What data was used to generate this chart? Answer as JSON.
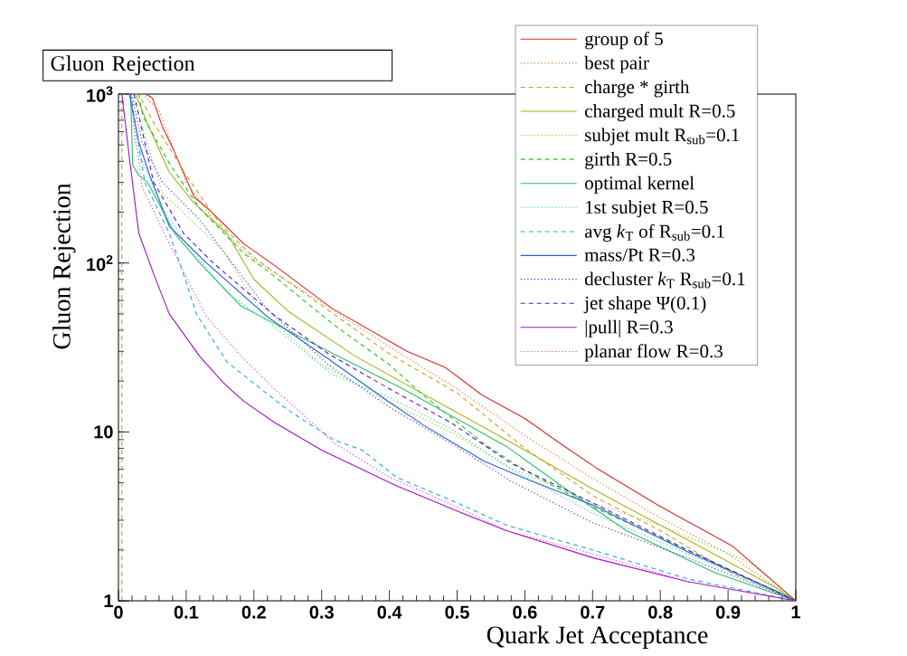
{
  "chart_data": {
    "type": "line",
    "title": "Gluon Rejection",
    "xlabel": "Quark Jet Acceptance",
    "ylabel": "Gluon Rejection",
    "xlim": [
      0,
      1
    ],
    "ylim": [
      1,
      1000
    ],
    "log": true,
    "legend": "top right",
    "marker": "none",
    "xticks": [
      0,
      0.1,
      0.2,
      0.3,
      0.4,
      0.5,
      0.6,
      0.7,
      0.8,
      0.9,
      1
    ],
    "yticks": [
      1,
      10,
      {
        "value": 100,
        "label": "10$^{2}$"
      },
      {
        "value": 1000,
        "label": "10$^{3}$"
      }
    ],
    "series": [
      {
        "name": "group of 5",
        "color": "#d42a2a",
        "line_style": "solid",
        "x": [
          0.04,
          0.05,
          0.065,
          0.08,
          0.112,
          0.132,
          0.185,
          0.23,
          0.315,
          0.426,
          0.483,
          0.537,
          0.6,
          0.653,
          0.706,
          0.796,
          0.907,
          1
        ],
        "values": [
          1000,
          950,
          640,
          480,
          245,
          210,
          130,
          97,
          54,
          30,
          24,
          16.5,
          12,
          8.5,
          6.1,
          3.7,
          2.1,
          1
        ]
      },
      {
        "name": "best pair",
        "color": "#e07030",
        "line_style": "dotted",
        "x": [
          0.035,
          0.06,
          0.1,
          0.15,
          0.2,
          0.3,
          0.4,
          0.5,
          0.6,
          0.7,
          0.8,
          0.9,
          1
        ],
        "values": [
          1000,
          800,
          300,
          160,
          105,
          58,
          32,
          18,
          9.5,
          5.3,
          3.1,
          1.9,
          1
        ]
      },
      {
        "name": "charge * girth",
        "color": "#c8a028",
        "line_style": "dashed",
        "x": [
          0.005,
          0.005,
          0.03,
          0.05,
          0.1,
          0.15,
          0.2,
          0.3,
          0.4,
          0.5,
          0.6,
          0.7,
          0.8,
          0.9,
          1
        ],
        "values": [
          1,
          1000,
          1000,
          700,
          330,
          170,
          108,
          56,
          29,
          17,
          8,
          4.2,
          2.6,
          1.5,
          1
        ]
      },
      {
        "name": "charged mult R=0.5",
        "color": "#a4b41e",
        "line_style": "solid",
        "x": [
          0.025,
          0.045,
          0.075,
          0.11,
          0.16,
          0.2,
          0.25,
          0.35,
          0.5,
          0.6,
          0.7,
          0.84,
          0.97,
          1
        ],
        "values": [
          1000,
          640,
          345,
          230,
          150,
          80,
          52,
          28,
          13,
          7.8,
          4.6,
          2.3,
          1.2,
          1
        ]
      },
      {
        "name": "subjet mult R$_{sub}$=0.1",
        "color": "#78d028",
        "line_style": "dotted",
        "x": [
          0.02,
          0.065,
          0.155,
          0.21,
          0.3,
          0.4,
          0.49,
          0.58,
          0.7,
          0.8,
          0.93,
          1
        ],
        "values": [
          1000,
          260,
          118,
          52,
          25,
          15,
          10,
          6.1,
          3.8,
          2.8,
          1.7,
          1
        ]
      },
      {
        "name": "girth R=0.5",
        "color": "#22c81e",
        "line_style": "dashed",
        "x": [
          0.03,
          0.036,
          0.075,
          0.12,
          0.185,
          0.226,
          0.315,
          0.4,
          0.45,
          0.54,
          0.6,
          0.7,
          0.84,
          1
        ],
        "values": [
          1000,
          740,
          390,
          210,
          114,
          86,
          44,
          25,
          16.5,
          8.5,
          5.9,
          3.6,
          2.0,
          1
        ]
      },
      {
        "name": "optimal kernel",
        "color": "#28c068",
        "line_style": "solid",
        "x": [
          0.018,
          0.021,
          0.03,
          0.043,
          0.083,
          0.12,
          0.18,
          0.22,
          0.31,
          0.42,
          0.54,
          0.573,
          0.66,
          0.75,
          0.88,
          1
        ],
        "values": [
          1000,
          380,
          330,
          300,
          150,
          100,
          56,
          46,
          30,
          18,
          9.7,
          8.2,
          4.6,
          2.6,
          1.47,
          1
        ]
      },
      {
        "name": "1st subjet R=0.5",
        "color": "#28c8c0",
        "line_style": "dotted",
        "x": [
          0.018,
          0.025,
          0.065,
          0.1,
          0.16,
          0.22,
          0.315,
          0.4,
          0.49,
          0.58,
          0.7,
          0.84,
          1
        ],
        "values": [
          1000,
          500,
          210,
          130,
          67,
          45,
          22,
          16,
          10.5,
          6.0,
          3.3,
          1.9,
          1
        ]
      },
      {
        "name": "avg *k*$_{T}$ of R$_{sub}$=0.1",
        "color": "#28a8d0",
        "line_style": "dashed",
        "x": [
          0.018,
          0.039,
          0.075,
          0.096,
          0.115,
          0.16,
          0.21,
          0.25,
          0.32,
          0.36,
          0.41,
          0.5,
          0.573,
          0.7,
          0.84,
          1
        ],
        "values": [
          1000,
          300,
          150,
          86,
          50,
          26,
          18,
          13.5,
          8.9,
          7.8,
          5.4,
          3.8,
          2.8,
          2.0,
          1.35,
          1
        ]
      },
      {
        "name": "mass/Pt R=0.3",
        "color": "#2464c8",
        "line_style": "solid",
        "x": [
          0.016,
          0.03,
          0.045,
          0.075,
          0.13,
          0.22,
          0.31,
          0.4,
          0.45,
          0.54,
          0.6,
          0.7,
          0.84,
          0.97,
          1
        ],
        "values": [
          1000,
          520,
          340,
          165,
          100,
          48,
          27,
          15,
          11,
          6.7,
          5.3,
          3.7,
          1.95,
          1.15,
          1
        ]
      },
      {
        "name": "decluster *k*$_{T}$ R$_{sub}$=0.1",
        "color": "#3434e0",
        "line_style": "dotted",
        "x": [
          0.019,
          0.035,
          0.065,
          0.12,
          0.16,
          0.22,
          0.31,
          0.4,
          0.49,
          0.58,
          0.7,
          0.84,
          1
        ],
        "values": [
          1000,
          520,
          300,
          180,
          110,
          53,
          25,
          14,
          8.6,
          5.1,
          2.9,
          1.8,
          1
        ]
      },
      {
        "name": "jet shape Ψ(0.1)",
        "color": "#6010d0",
        "line_style": "dashed",
        "x": [
          0.023,
          0.052,
          0.096,
          0.14,
          0.23,
          0.31,
          0.4,
          0.49,
          0.58,
          0.7,
          0.84,
          1
        ],
        "values": [
          1000,
          300,
          150,
          100,
          49,
          29,
          18,
          11.4,
          6.5,
          3.8,
          2.0,
          1
        ]
      },
      {
        "name": "|pull| R=0.3",
        "color": "#a010c8",
        "line_style": "solid",
        "x": [
          0.005,
          0.016,
          0.03,
          0.052,
          0.075,
          0.12,
          0.155,
          0.185,
          0.23,
          0.3,
          0.41,
          0.5,
          0.573,
          0.7,
          0.84,
          1
        ],
        "values": [
          1000,
          425,
          150,
          86,
          50,
          28,
          19.5,
          15.2,
          11.4,
          7.8,
          4.8,
          3.4,
          2.6,
          1.8,
          1.3,
          1
        ]
      },
      {
        "name": "planar flow R=0.3",
        "color": "#e040c0",
        "line_style": "dotted",
        "x": [
          0.018,
          0.035,
          0.075,
          0.13,
          0.185,
          0.23,
          0.275,
          0.32,
          0.4,
          0.5,
          0.573,
          0.7,
          0.84,
          1
        ],
        "values": [
          1000,
          280,
          130,
          48,
          27,
          18,
          12.4,
          8.5,
          5.4,
          3.6,
          2.6,
          1.9,
          1.3,
          1
        ]
      }
    ]
  }
}
